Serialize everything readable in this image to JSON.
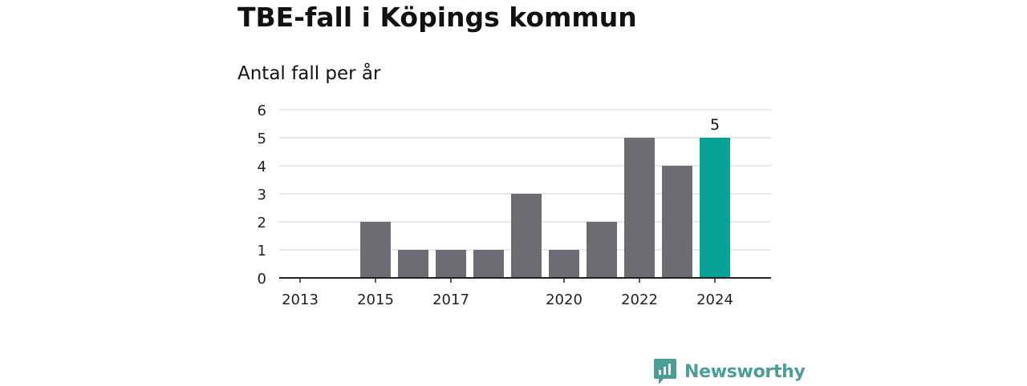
{
  "header": {
    "title": "TBE-fall i Köpings kommun",
    "subtitle": "Antal fall per år"
  },
  "brand": {
    "name": "Newsworthy",
    "color": "#4a9e96",
    "icon": "newsworthy-logo-icon"
  },
  "colors": {
    "bar": "#6d6c72",
    "highlight": "#05a196",
    "grid": "#d9d9d9",
    "axis": "#222222"
  },
  "chart_data": {
    "type": "bar",
    "categories": [
      "2013",
      "2014",
      "2015",
      "2016",
      "2017",
      "2018",
      "2019",
      "2020",
      "2021",
      "2022",
      "2023",
      "2024"
    ],
    "values": [
      0,
      0,
      2,
      1,
      1,
      1,
      3,
      1,
      2,
      5,
      4,
      5
    ],
    "shown_tick_labels": [
      "2013",
      "2015",
      "2017",
      "2020",
      "2022",
      "2024"
    ],
    "highlighted": "2024",
    "data_labels": [
      {
        "category": "2024",
        "text": "5"
      }
    ],
    "ylim": [
      0,
      6
    ],
    "yticks": [
      0,
      1,
      2,
      3,
      4,
      5,
      6
    ],
    "xlabel": "",
    "ylabel": "",
    "grid": true,
    "legend": "none"
  }
}
